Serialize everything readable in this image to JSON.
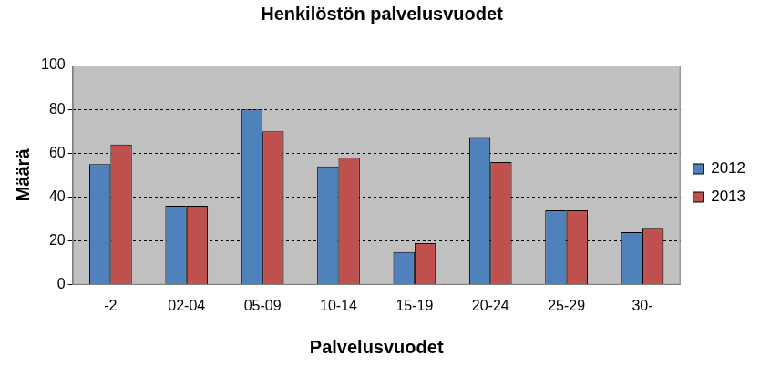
{
  "chart_data": {
    "type": "bar",
    "title": "Henkilöstön palvelusvuodet",
    "x_label": "Palvelusvuodet",
    "y_label": "Määrä",
    "categories": [
      "-2",
      "02-04",
      "05-09",
      "10-14",
      "15-19",
      "20-24",
      "25-29",
      "30-"
    ],
    "series": [
      {
        "name": "2012",
        "color": "#4f81bd",
        "values": [
          55,
          36,
          80,
          54,
          15,
          67,
          34,
          24
        ]
      },
      {
        "name": "2013",
        "color": "#c0504d",
        "values": [
          64,
          36,
          70,
          58,
          19,
          56,
          34,
          26
        ]
      }
    ],
    "ylim": [
      0,
      100
    ],
    "yticks": [
      0,
      20,
      40,
      60,
      80,
      100
    ],
    "grid": true,
    "legend": "right"
  }
}
